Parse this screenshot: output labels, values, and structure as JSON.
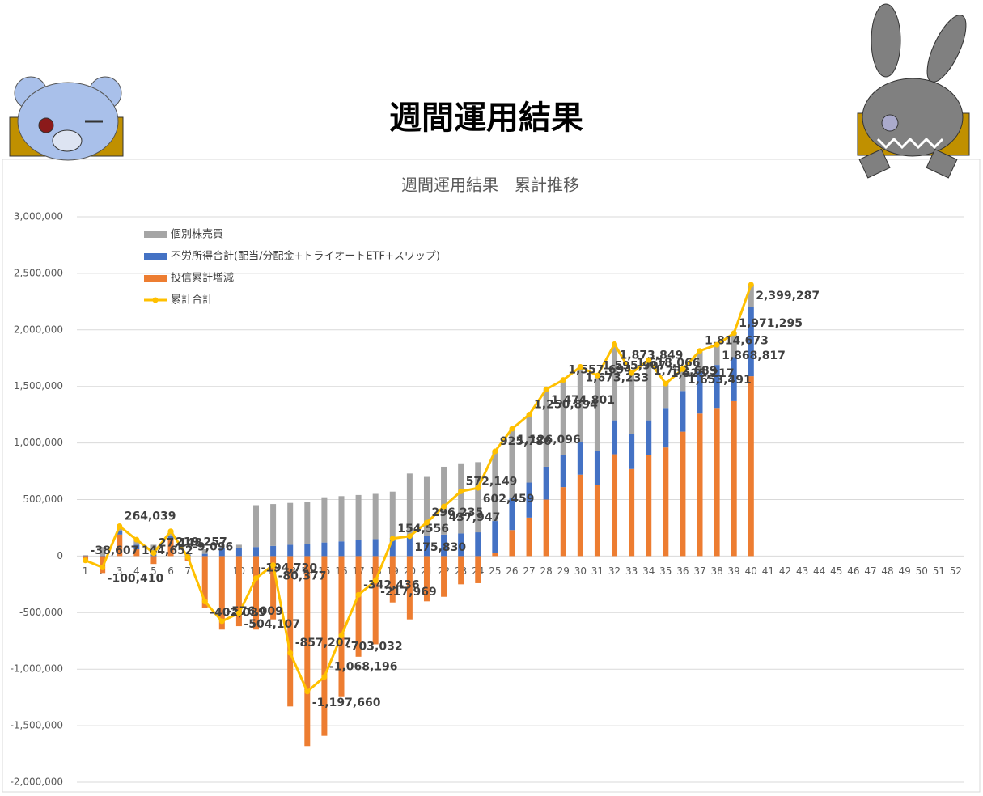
{
  "header": {
    "title": "週間運用結果"
  },
  "chart_data": {
    "type": "bar",
    "stacked": true,
    "title": "週間運用結果　累計推移",
    "categories": [
      "1",
      "2",
      "3",
      "4",
      "5",
      "6",
      "7",
      "8",
      "9",
      "10",
      "11",
      "12",
      "13",
      "14",
      "15",
      "16",
      "17",
      "18",
      "19",
      "20",
      "21",
      "22",
      "23",
      "24",
      "25",
      "26",
      "27",
      "28",
      "29",
      "30",
      "31",
      "32",
      "33",
      "34",
      "35",
      "36",
      "37",
      "38",
      "39",
      "40",
      "41",
      "42",
      "43",
      "44",
      "45",
      "46",
      "47",
      "48",
      "49",
      "50",
      "51",
      "52"
    ],
    "series": [
      {
        "name": "個別株売買",
        "type": "bar",
        "color": "#A5A5A5",
        "values": [
          5000,
          75000,
          45000,
          45000,
          85000,
          40000,
          20000,
          40000,
          5000,
          30000,
          370000,
          370000,
          370000,
          370000,
          400000,
          400000,
          400000,
          400000,
          410000,
          560000,
          520000,
          600000,
          620000,
          620000,
          610000,
          610000,
          600000,
          680000,
          660000,
          660000,
          660000,
          670000,
          540000,
          530000,
          220000,
          190000,
          180000,
          180000,
          210000,
          200000,
          null,
          null,
          null,
          null,
          null,
          null,
          null,
          null,
          null,
          null,
          null,
          null
        ]
      },
      {
        "name": "不労所得合計(配当/分配金+トライオートETF+スワップ)",
        "type": "bar",
        "color": "#4472C4",
        "values": [
          3000,
          5000,
          30000,
          40000,
          15000,
          30000,
          10000,
          20000,
          70000,
          70000,
          80000,
          90000,
          100000,
          110000,
          120000,
          130000,
          140000,
          150000,
          160000,
          170000,
          180000,
          190000,
          200000,
          210000,
          280000,
          280000,
          310000,
          290000,
          280000,
          290000,
          300000,
          300000,
          310000,
          310000,
          350000,
          360000,
          370000,
          380000,
          390000,
          610000,
          null,
          null,
          null,
          null,
          null,
          null,
          null,
          null,
          null,
          null,
          null,
          null
        ]
      },
      {
        "name": "投信累計増減",
        "type": "bar",
        "color": "#ED7D31",
        "values": [
          -45000,
          -150000,
          190000,
          60000,
          -70000,
          150000,
          -40000,
          -460000,
          -650000,
          -620000,
          -650000,
          -560000,
          -1330000,
          -1680000,
          -1590000,
          -1240000,
          -890000,
          -780000,
          -410000,
          -560000,
          -400000,
          -360000,
          -250000,
          -240000,
          30000,
          230000,
          340000,
          500000,
          610000,
          720000,
          630000,
          900000,
          770000,
          890000,
          960000,
          1100000,
          1260000,
          1310000,
          1370000,
          1590000,
          null,
          null,
          null,
          null,
          null,
          null,
          null,
          null,
          null,
          null,
          null,
          null
        ]
      },
      {
        "name": "累計合計",
        "type": "line",
        "color": "#FFC000",
        "values": [
          -38607,
          -100410,
          264039,
          144652,
          27148,
          219257,
          -9096,
          -402039,
          -576009,
          -504107,
          -194720,
          -80377,
          -857207,
          -1197660,
          -1068196,
          -703032,
          -342436,
          -217969,
          154556,
          175830,
          296235,
          437947,
          572149,
          602459,
          925786,
          1126096,
          1250894,
          1474801,
          1557694,
          1673233,
          1595907,
          1873849,
          1618066,
          1732689,
          1525217,
          1653491,
          1814673,
          1868817,
          1971295,
          2399287,
          null,
          null,
          null,
          null,
          null,
          null,
          null,
          null,
          null,
          null,
          null,
          null
        ],
        "value_labels": [
          "-38,607",
          "-100,410",
          "264,039",
          "144,652",
          "27,148",
          "219,257",
          "-9,096",
          "-402,039",
          "-576,009",
          "-504,107",
          "-194,720",
          "-80,377",
          "-857,207",
          "-1,197,660",
          "-1,068,196",
          "-703,032",
          "-342,436",
          "-217,969",
          "154,556",
          "175,830",
          "296,235",
          "437,947",
          "572,149",
          "602,459",
          "925,786",
          "1,126,096",
          "1,250,894",
          "1,474,801",
          "1,557,694",
          "1,673,233",
          "1,595,907",
          "1,873,849",
          "1,618,066",
          "1,732,689",
          "1,525,217",
          "1,653,491",
          "1,814,673",
          "1,868,817",
          "1,971,295",
          "2,399,287",
          null,
          null,
          null,
          null,
          null,
          null,
          null,
          null,
          null,
          null,
          null,
          null
        ]
      }
    ],
    "ylim": [
      -2000000,
      3000000
    ],
    "yticks": [
      {
        "value": -2000000,
        "label": "-2,000,000"
      },
      {
        "value": -1500000,
        "label": "-1,500,000"
      },
      {
        "value": -1000000,
        "label": "-1,000,000"
      },
      {
        "value": -500000,
        "label": "-500,000"
      },
      0,
      {
        "value": 500000,
        "label": "500,000"
      },
      {
        "value": 1000000,
        "label": "1,000,000"
      },
      {
        "value": 1500000,
        "label": "1,500,000"
      },
      {
        "value": 2000000,
        "label": "2,000,000"
      },
      {
        "value": 2500000,
        "label": "2,500,000"
      },
      {
        "value": 3000000,
        "label": "3,000,000"
      }
    ],
    "grid": true,
    "legend": "top-left"
  }
}
